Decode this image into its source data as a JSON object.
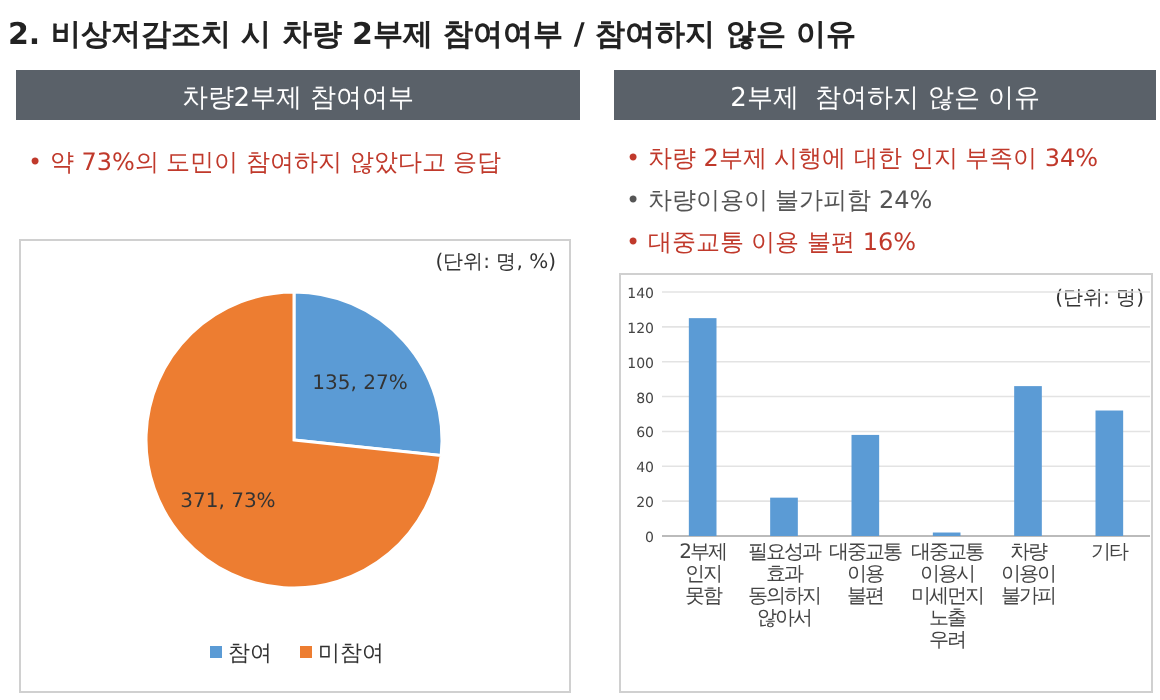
{
  "chart_data": [
    {
      "type": "pie",
      "title": "차량2부제 참여여부",
      "annotations": [
        "2. 비상저감조치 시 차량 2부제 참여여부 / 참여하지 않은 이유",
        "• 약 73%의 도민이 참여하지 않았다고 응답",
        "(단위: 명, %)"
      ],
      "categories": [
        "참여",
        "미참여"
      ],
      "values": [
        135,
        371
      ],
      "colors": [
        "#5b9bd5",
        "#ed7d31"
      ],
      "value_labels": [
        "135, 27%",
        "371, 73%"
      ],
      "legend": "bottom"
    },
    {
      "type": "bar",
      "title": "2부제  참여하지 않은 이유",
      "annotations": [
        "• 차량 2부제 시행에 대한 인지 부족이 34%",
        "• 차량이용이 불가피함 24%",
        "• 대중교통 이용 불편 16%",
        "(단위: 명)"
      ],
      "categories": [
        "2부제 인지 못함",
        "필요성과 효과 동의하지 않아서",
        "대중교통 이용 불편",
        "대중교통 이용시 미세먼지 노출 우려",
        "차량 이용이 불가피",
        "기타"
      ],
      "values": [
        125,
        22,
        58,
        2,
        86,
        72
      ],
      "color": "#5b9bd5",
      "ylim": [
        0,
        140
      ],
      "yticks": [
        0,
        20,
        40,
        60,
        80,
        100,
        120,
        140
      ],
      "grid": "y"
    }
  ]
}
